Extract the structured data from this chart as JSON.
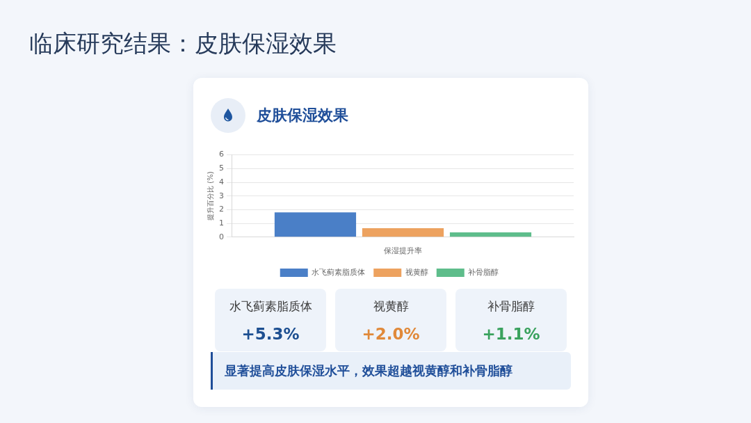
{
  "chart_data": {
    "type": "bar",
    "title": "临床研究结果：皮肤保湿效果",
    "subtitle": "皮肤保湿效果",
    "ylabel": "提升百分比 (%)",
    "categories": [
      "保湿提升率"
    ],
    "series": [
      {
        "name": "水飞蓟素脂质体",
        "color": "#4a7fc7",
        "values": [
          1.8
        ]
      },
      {
        "name": "视黄醇",
        "color": "#eda25f",
        "values": [
          0.65
        ]
      },
      {
        "name": "补骨脂醇",
        "color": "#5ebd8b",
        "values": [
          0.35
        ]
      }
    ],
    "ylim": [
      0,
      6
    ],
    "yticks": [
      0,
      1,
      2,
      3,
      4,
      5,
      6
    ],
    "grid": "y",
    "legend": "bottom",
    "annotations": [
      "水飞蓟素脂质体",
      "+5.3%",
      "视黄醇",
      "+2.0%",
      "补骨脂醇",
      "+1.1%",
      "显著提高皮肤保湿水平，效果超越视黄醇和补骨脂醇"
    ]
  }
}
